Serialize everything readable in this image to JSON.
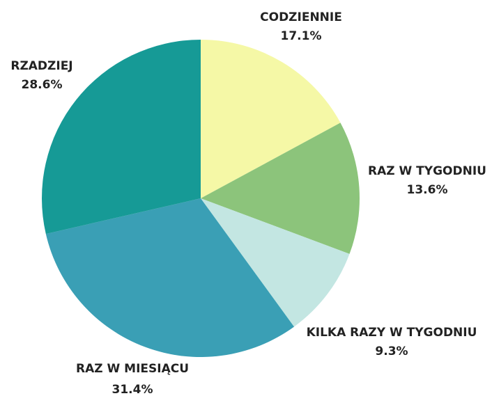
{
  "chart_data": {
    "type": "pie",
    "categories": [
      "CODZIENNIE",
      "RAZ W TYGODNIU",
      "KILKA RAZY W TYGODNIU",
      "RAZ W MIESIĄCU",
      "RZADZIEJ"
    ],
    "values": [
      17.1,
      13.6,
      9.3,
      31.4,
      28.6
    ],
    "value_labels": [
      "17.1%",
      "13.6%",
      "9.3%",
      "31.4%",
      "28.6%"
    ],
    "colors": [
      "#f5f8a6",
      "#8cc47b",
      "#c3e6e2",
      "#3a9fb5",
      "#169a96"
    ]
  }
}
